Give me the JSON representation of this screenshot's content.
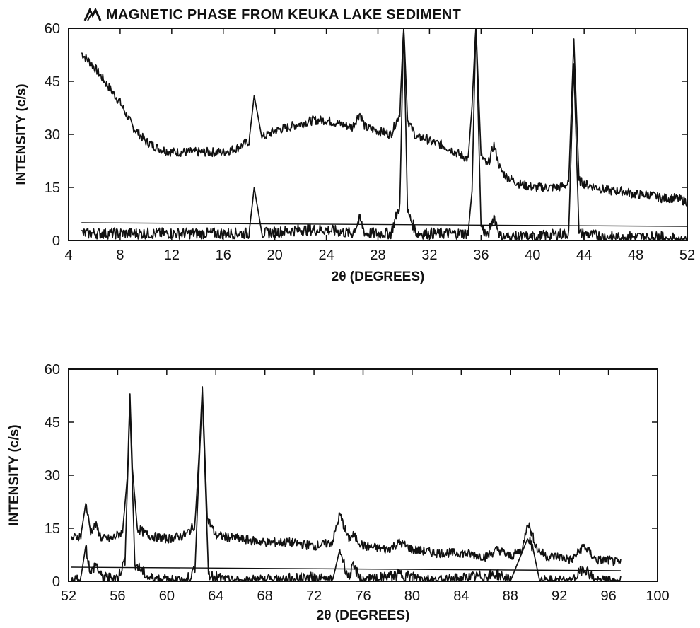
{
  "title": "MAGNETIC PHASE FROM KEUKA LAKE SEDIMENT",
  "logo_icon": "diffraction-logo-icon",
  "colors": {
    "ink": "#111111",
    "background": "#ffffff"
  },
  "chart_data": [
    {
      "type": "line",
      "title": "MAGNETIC PHASE FROM KEUKA LAKE SEDIMENT",
      "xlabel": "2θ (DEGREES)",
      "ylabel": "INTENSITY (c/s)",
      "xlim": [
        4,
        52
      ],
      "ylim": [
        0,
        60
      ],
      "xticks": [
        4,
        8,
        12,
        16,
        20,
        24,
        28,
        32,
        36,
        40,
        44,
        48,
        52
      ],
      "xtick_labels": [
        "4",
        "8",
        "12",
        "16",
        "20",
        "24",
        "28",
        "32",
        "36",
        "40",
        "44",
        "48",
        "52"
      ],
      "yticks": [
        0,
        15,
        30,
        45,
        60
      ],
      "ytick_labels": [
        "0",
        "15",
        "30",
        "45",
        "60"
      ],
      "grid": false,
      "series": [
        {
          "role": "measured",
          "x": [
            5.0,
            6,
            7,
            8,
            9,
            10,
            11,
            12,
            13,
            14,
            15,
            16,
            17,
            18,
            18.4,
            19,
            20,
            21,
            22,
            23,
            24,
            25,
            26,
            26.6,
            27,
            28,
            29,
            29.7,
            30.0,
            30.3,
            31,
            31.7,
            32,
            33,
            34,
            35,
            35.3,
            35.6,
            36.0,
            36.5,
            37.0,
            37.5,
            38,
            39,
            40,
            41,
            42,
            42.8,
            43.2,
            43.6,
            44,
            45,
            46,
            47,
            48,
            49,
            50,
            51,
            52
          ],
          "y": [
            53,
            49,
            44,
            39,
            32,
            28,
            26,
            25,
            25,
            25,
            25,
            25,
            26,
            28,
            41,
            29,
            31,
            32,
            33,
            34,
            34,
            33,
            32,
            36,
            32,
            31,
            30,
            36,
            61,
            34,
            29,
            29,
            28,
            27,
            25,
            23,
            38,
            61,
            24,
            21,
            27,
            20,
            18,
            16,
            15,
            15,
            15,
            16,
            57,
            17,
            16,
            15,
            14,
            14,
            13,
            13,
            12,
            12,
            11
          ]
        },
        {
          "role": "background-subtracted",
          "x": [
            5.0,
            8,
            12,
            16,
            18,
            18.4,
            19,
            22,
            24,
            26,
            26.6,
            27,
            29,
            29.7,
            30.0,
            30.3,
            31,
            33,
            35,
            35.3,
            35.6,
            36.0,
            36.5,
            37.0,
            37.5,
            40,
            42.8,
            43.2,
            43.6,
            46,
            50,
            52
          ],
          "y": [
            2,
            2,
            2,
            2,
            2,
            15,
            2,
            3,
            3,
            2,
            6,
            2,
            2,
            10,
            61,
            8,
            2,
            2,
            2,
            14,
            61,
            4,
            1,
            7,
            1,
            1,
            2,
            50,
            2,
            1,
            1,
            0
          ]
        },
        {
          "role": "reference-line",
          "x": [
            5,
            52
          ],
          "y": [
            5,
            4
          ]
        }
      ]
    },
    {
      "type": "line",
      "title": "",
      "xlabel": "2θ (DEGREES)",
      "ylabel": "INTENSITY (c/s)",
      "xlim": [
        52,
        100
      ],
      "ylim": [
        0,
        60
      ],
      "xticks": [
        52,
        56,
        60,
        64,
        68,
        72,
        76,
        80,
        84,
        88,
        92,
        96,
        100
      ],
      "xtick_labels": [
        "52",
        "56",
        "60",
        "64",
        "68",
        "72",
        "76",
        "80",
        "84",
        "88",
        "92",
        "96",
        "100"
      ],
      "yticks": [
        0,
        15,
        30,
        45,
        60
      ],
      "ytick_labels": [
        "0",
        "15",
        "30",
        "45",
        "60"
      ],
      "grid": false,
      "series": [
        {
          "role": "measured",
          "x": [
            52.2,
            53,
            53.4,
            53.8,
            54.2,
            54.7,
            55.5,
            56.4,
            56.8,
            57.0,
            57.2,
            57.6,
            58.5,
            60,
            61.5,
            62.3,
            62.7,
            62.9,
            63.3,
            64,
            66,
            68,
            70,
            72,
            73.5,
            74.1,
            74.8,
            75.2,
            76,
            78,
            79,
            80,
            82,
            84,
            86,
            87,
            88,
            89,
            89.4,
            89.7,
            90.2,
            91,
            92,
            93,
            94,
            95,
            96,
            97
          ],
          "y": [
            12,
            13,
            22,
            14,
            16,
            12,
            12,
            14,
            30,
            53,
            32,
            15,
            13,
            12,
            13,
            16,
            40,
            55,
            18,
            13,
            12,
            11,
            11,
            10,
            11,
            19,
            12,
            13,
            10,
            9,
            11,
            9,
            8,
            8,
            7,
            9,
            7,
            9,
            17,
            14,
            9,
            7,
            7,
            6,
            10,
            6,
            6,
            5
          ]
        },
        {
          "role": "background-subtracted",
          "x": [
            52.2,
            53,
            53.4,
            53.8,
            54.2,
            54.7,
            56,
            56.6,
            57.0,
            57.4,
            58.5,
            61.5,
            62.3,
            62.7,
            62.9,
            63.4,
            65,
            72,
            73.5,
            74.1,
            74.8,
            75.2,
            76,
            79,
            82,
            87,
            88,
            89.4,
            89.8,
            90.4,
            93,
            94,
            95,
            97
          ],
          "y": [
            0,
            1,
            10,
            2,
            5,
            1,
            1,
            6,
            50,
            5,
            1,
            0,
            3,
            38,
            53,
            2,
            0,
            1,
            0,
            9,
            1,
            4,
            0,
            2,
            0,
            2,
            0,
            12,
            10,
            0,
            0,
            4,
            0,
            0
          ]
        },
        {
          "role": "reference-line",
          "x": [
            52.2,
            97
          ],
          "y": [
            4,
            3
          ]
        }
      ]
    }
  ]
}
